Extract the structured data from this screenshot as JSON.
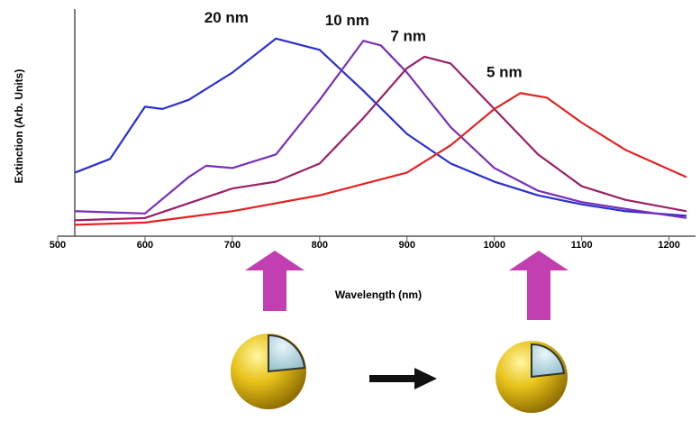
{
  "chart_data": {
    "type": "line",
    "y_label": "Extinction (Arb. Units)",
    "x_label": "Wavelength (nm)",
    "xlim": [
      500,
      1220
    ],
    "ylim": [
      0,
      1
    ],
    "xticks": [
      500,
      600,
      700,
      800,
      900,
      1000,
      1100,
      1200
    ],
    "series": [
      {
        "name": "20 nm",
        "color": "#2a2fd0",
        "x": [
          520,
          560,
          600,
          620,
          650,
          700,
          750,
          800,
          850,
          900,
          950,
          1000,
          1050,
          1100,
          1150,
          1220
        ],
        "values": [
          0.28,
          0.34,
          0.57,
          0.56,
          0.6,
          0.72,
          0.87,
          0.82,
          0.64,
          0.45,
          0.32,
          0.24,
          0.18,
          0.14,
          0.11,
          0.09
        ]
      },
      {
        "name": "10 nm",
        "color": "#7a2fb8",
        "x": [
          520,
          600,
          650,
          670,
          700,
          750,
          800,
          850,
          870,
          900,
          950,
          1000,
          1050,
          1100,
          1150,
          1220
        ],
        "values": [
          0.11,
          0.1,
          0.26,
          0.31,
          0.3,
          0.36,
          0.6,
          0.86,
          0.84,
          0.72,
          0.48,
          0.3,
          0.2,
          0.15,
          0.12,
          0.08
        ]
      },
      {
        "name": "7 nm",
        "color": "#9a2068",
        "x": [
          520,
          600,
          700,
          750,
          800,
          850,
          900,
          920,
          950,
          1000,
          1050,
          1100,
          1150,
          1220
        ],
        "values": [
          0.07,
          0.08,
          0.21,
          0.24,
          0.32,
          0.52,
          0.74,
          0.79,
          0.76,
          0.56,
          0.36,
          0.22,
          0.16,
          0.11
        ]
      },
      {
        "name": "5 nm",
        "color": "#e42222",
        "x": [
          520,
          600,
          700,
          800,
          900,
          950,
          1000,
          1030,
          1060,
          1100,
          1150,
          1220
        ],
        "values": [
          0.05,
          0.06,
          0.11,
          0.18,
          0.28,
          0.4,
          0.56,
          0.63,
          0.61,
          0.5,
          0.38,
          0.26
        ]
      }
    ]
  }
}
